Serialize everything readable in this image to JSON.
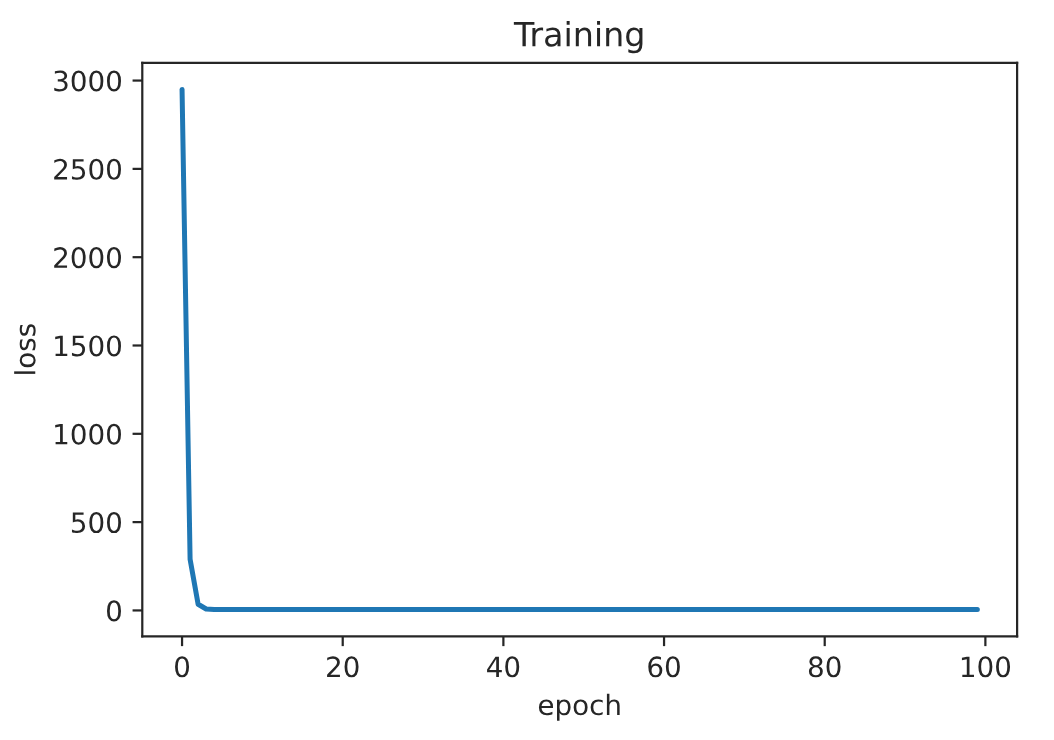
{
  "chart_data": {
    "type": "line",
    "title": "Training",
    "xlabel": "epoch",
    "ylabel": "loss",
    "x": [
      0,
      1,
      2,
      3,
      4,
      5,
      6,
      7,
      8,
      9,
      10,
      11,
      12,
      13,
      14,
      15,
      16,
      17,
      18,
      19,
      20,
      21,
      22,
      23,
      24,
      25,
      26,
      27,
      28,
      29,
      30,
      31,
      32,
      33,
      34,
      35,
      36,
      37,
      38,
      39,
      40,
      41,
      42,
      43,
      44,
      45,
      46,
      47,
      48,
      49,
      50,
      51,
      52,
      53,
      54,
      55,
      56,
      57,
      58,
      59,
      60,
      61,
      62,
      63,
      64,
      65,
      66,
      67,
      68,
      69,
      70,
      71,
      72,
      73,
      74,
      75,
      76,
      77,
      78,
      79,
      80,
      81,
      82,
      83,
      84,
      85,
      86,
      87,
      88,
      89,
      90,
      91,
      92,
      93,
      94,
      95,
      96,
      97,
      98,
      99
    ],
    "series": [
      {
        "color": "#1f77b4",
        "values": [
          2950,
          290,
          35,
          8,
          5,
          5,
          5,
          5,
          5,
          5,
          5,
          5,
          5,
          5,
          5,
          5,
          5,
          5,
          5,
          5,
          5,
          5,
          5,
          5,
          5,
          5,
          5,
          5,
          5,
          5,
          5,
          5,
          5,
          5,
          5,
          5,
          5,
          5,
          5,
          5,
          5,
          5,
          5,
          5,
          5,
          5,
          5,
          5,
          5,
          5,
          5,
          5,
          5,
          5,
          5,
          5,
          5,
          5,
          5,
          5,
          5,
          5,
          5,
          5,
          5,
          5,
          5,
          5,
          5,
          5,
          5,
          5,
          5,
          5,
          5,
          5,
          5,
          5,
          5,
          5,
          5,
          5,
          5,
          5,
          5,
          5,
          5,
          5,
          5,
          5,
          5,
          5,
          5,
          5,
          5,
          5,
          5,
          5,
          5,
          5
        ]
      }
    ],
    "xlim": [
      -4.95,
      103.95
    ],
    "ylim": [
      -147,
      3100
    ],
    "xticks": [
      0,
      20,
      40,
      60,
      80,
      100
    ],
    "yticks": [
      0,
      500,
      1000,
      1500,
      2000,
      2500,
      3000
    ],
    "grid": false,
    "legend": false,
    "marker": "none",
    "line_style": "solid"
  }
}
